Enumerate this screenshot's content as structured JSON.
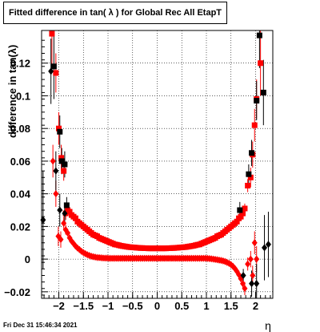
{
  "title": "Fitted difference in tan( λ ) for Global Rec All EtapT",
  "timestamp": "Fri Dec 31 15:46:34 2021",
  "chart_data": {
    "type": "scatter",
    "title": "Fitted difference in tan( λ ) for Global Rec All EtapT",
    "xlabel": "η",
    "ylabel": "difference in tan(λ)",
    "xlim": [
      -2.35,
      2.35
    ],
    "ylim": [
      -0.024,
      0.14
    ],
    "grid": true,
    "x_ticks": [
      -2,
      -1.5,
      -1,
      -0.5,
      0,
      0.5,
      1,
      1.5,
      2
    ],
    "x_tick_labels": [
      "−2",
      "−1.5",
      "−1",
      "−0.5",
      "0",
      "0.5",
      "1",
      "1.5",
      "2"
    ],
    "y_ticks": [
      -0.02,
      0,
      0.02,
      0.04,
      0.06,
      0.08,
      0.1,
      0.12
    ],
    "y_tick_labels": [
      "−0.02",
      "0",
      "0.02",
      "0.04",
      "0.06",
      "0.08",
      "0.1",
      "0.12"
    ],
    "series": [
      {
        "marker": "square",
        "color": "#ff0000",
        "points": [
          [
            -2.14,
            0.138,
            0.02
          ],
          [
            -2.06,
            0.114,
            0.012
          ],
          [
            -2.0,
            0.08,
            0.01
          ],
          [
            -1.95,
            0.062,
            0.008
          ],
          [
            -1.9,
            0.054,
            0.006
          ],
          [
            -1.86,
            0.028,
            0.004
          ],
          [
            -1.82,
            0.03,
            0.003
          ],
          [
            -1.78,
            0.029,
            0.002
          ],
          [
            -1.74,
            0.027,
            0.002
          ],
          [
            -1.7,
            0.026,
            0.001
          ],
          [
            -1.66,
            0.025,
            0.001
          ],
          [
            -1.62,
            0.023,
            0.001
          ],
          [
            -1.58,
            0.022,
            0.001
          ],
          [
            -1.54,
            0.021,
            0.001
          ],
          [
            -1.5,
            0.02,
            0.001
          ],
          [
            -1.46,
            0.019,
            0.001
          ],
          [
            -1.42,
            0.018,
            0.001
          ],
          [
            -1.38,
            0.017,
            0.001
          ],
          [
            -1.34,
            0.016,
            0.001
          ],
          [
            -1.3,
            0.015,
            0.001
          ],
          [
            -1.26,
            0.0145,
            0.001
          ],
          [
            -1.22,
            0.014,
            0.001
          ],
          [
            -1.18,
            0.013,
            0.001
          ],
          [
            -1.14,
            0.0125,
            0.001
          ],
          [
            -1.1,
            0.012,
            0.001
          ],
          [
            -1.06,
            0.0115,
            0.001
          ],
          [
            -1.02,
            0.011,
            0.001
          ],
          [
            -0.98,
            0.0105,
            0.001
          ],
          [
            -0.94,
            0.01,
            0.001
          ],
          [
            -0.9,
            0.0095,
            0.001
          ],
          [
            -0.86,
            0.009,
            0.001
          ],
          [
            -0.82,
            0.0088,
            0.001
          ],
          [
            -0.78,
            0.0085,
            0.001
          ],
          [
            -0.74,
            0.0082,
            0.001
          ],
          [
            -0.7,
            0.008,
            0.001
          ],
          [
            -0.66,
            0.0078,
            0.001
          ],
          [
            -0.62,
            0.0076,
            0.001
          ],
          [
            -0.58,
            0.0074,
            0.001
          ],
          [
            -0.54,
            0.0073,
            0.001
          ],
          [
            -0.5,
            0.0072,
            0.001
          ],
          [
            -0.46,
            0.0071,
            0.001
          ],
          [
            -0.42,
            0.007,
            0.001
          ],
          [
            -0.38,
            0.0069,
            0.001
          ],
          [
            -0.34,
            0.0068,
            0.001
          ],
          [
            -0.3,
            0.0068,
            0.001
          ],
          [
            -0.26,
            0.0067,
            0.001
          ],
          [
            -0.22,
            0.0067,
            0.001
          ],
          [
            -0.18,
            0.0066,
            0.001
          ],
          [
            -0.14,
            0.0066,
            0.001
          ],
          [
            -0.1,
            0.0066,
            0.001
          ],
          [
            -0.06,
            0.0066,
            0.001
          ],
          [
            -0.02,
            0.0066,
            0.001
          ],
          [
            0.02,
            0.0066,
            0.001
          ],
          [
            0.06,
            0.0066,
            0.001
          ],
          [
            0.1,
            0.0066,
            0.001
          ],
          [
            0.14,
            0.0066,
            0.001
          ],
          [
            0.18,
            0.0066,
            0.001
          ],
          [
            0.22,
            0.0067,
            0.001
          ],
          [
            0.26,
            0.0067,
            0.001
          ],
          [
            0.3,
            0.0068,
            0.001
          ],
          [
            0.34,
            0.0068,
            0.001
          ],
          [
            0.38,
            0.0069,
            0.001
          ],
          [
            0.42,
            0.007,
            0.001
          ],
          [
            0.46,
            0.0071,
            0.001
          ],
          [
            0.5,
            0.0072,
            0.001
          ],
          [
            0.54,
            0.0073,
            0.001
          ],
          [
            0.58,
            0.0074,
            0.001
          ],
          [
            0.62,
            0.0076,
            0.001
          ],
          [
            0.66,
            0.0078,
            0.001
          ],
          [
            0.7,
            0.008,
            0.001
          ],
          [
            0.74,
            0.0082,
            0.001
          ],
          [
            0.78,
            0.0085,
            0.001
          ],
          [
            0.82,
            0.0088,
            0.001
          ],
          [
            0.86,
            0.009,
            0.001
          ],
          [
            0.9,
            0.0095,
            0.001
          ],
          [
            0.94,
            0.01,
            0.001
          ],
          [
            0.98,
            0.0105,
            0.001
          ],
          [
            1.02,
            0.011,
            0.001
          ],
          [
            1.06,
            0.0115,
            0.001
          ],
          [
            1.1,
            0.012,
            0.001
          ],
          [
            1.14,
            0.0125,
            0.001
          ],
          [
            1.18,
            0.013,
            0.001
          ],
          [
            1.22,
            0.014,
            0.001
          ],
          [
            1.26,
            0.0145,
            0.001
          ],
          [
            1.3,
            0.015,
            0.001
          ],
          [
            1.34,
            0.016,
            0.001
          ],
          [
            1.38,
            0.017,
            0.001
          ],
          [
            1.42,
            0.018,
            0.001
          ],
          [
            1.46,
            0.019,
            0.001
          ],
          [
            1.5,
            0.02,
            0.001
          ],
          [
            1.54,
            0.021,
            0.001
          ],
          [
            1.58,
            0.022,
            0.001
          ],
          [
            1.62,
            0.023,
            0.001
          ],
          [
            1.66,
            0.025,
            0.001
          ],
          [
            1.7,
            0.026,
            0.001
          ],
          [
            1.74,
            0.028,
            0.002
          ],
          [
            1.78,
            0.031,
            0.003
          ],
          [
            1.84,
            0.045,
            0.004
          ],
          [
            1.9,
            0.05,
            0.006
          ],
          [
            1.94,
            0.064,
            0.008
          ],
          [
            1.98,
            0.082,
            0.01
          ],
          [
            2.02,
            0.098,
            0.012
          ],
          [
            2.1,
            0.12,
            0.02
          ]
        ]
      },
      {
        "marker": "diamond",
        "color": "#ff0000",
        "points": [
          [
            -2.12,
            0.06,
            0.01
          ],
          [
            -2.06,
            0.04,
            0.008
          ],
          [
            -2.01,
            0.014,
            0.006
          ],
          [
            -1.96,
            0.012,
            0.005
          ],
          [
            -1.9,
            0.022,
            0.004
          ],
          [
            -1.86,
            0.018,
            0.003
          ],
          [
            -1.82,
            0.016,
            0.002
          ],
          [
            -1.78,
            0.013,
            0.002
          ],
          [
            -1.74,
            0.011,
            0.001
          ],
          [
            -1.7,
            0.0095,
            0.001
          ],
          [
            -1.66,
            0.008,
            0.001
          ],
          [
            -1.62,
            0.0068,
            0.001
          ],
          [
            -1.58,
            0.0058,
            0.001
          ],
          [
            -1.54,
            0.0048,
            0.001
          ],
          [
            -1.5,
            0.004,
            0.001
          ],
          [
            -1.46,
            0.0033,
            0.001
          ],
          [
            -1.42,
            0.0027,
            0.001
          ],
          [
            -1.38,
            0.0022,
            0.001
          ],
          [
            -1.34,
            0.0018,
            0.001
          ],
          [
            -1.3,
            0.0015,
            0.001
          ],
          [
            -1.26,
            0.0012,
            0.001
          ],
          [
            -1.22,
            0.001,
            0.001
          ],
          [
            -1.18,
            0.0009,
            0.001
          ],
          [
            -1.14,
            0.0008,
            0.001
          ],
          [
            -1.1,
            0.0007,
            0.001
          ],
          [
            -1.06,
            0.0006,
            0.001
          ],
          [
            -1.02,
            0.0006,
            0.001
          ],
          [
            -0.98,
            0.0005,
            0.001
          ],
          [
            -0.94,
            0.0005,
            0.001
          ],
          [
            -0.9,
            0.0005,
            0.001
          ],
          [
            -0.86,
            0.0005,
            0.001
          ],
          [
            -0.82,
            0.0005,
            0.001
          ],
          [
            -0.78,
            0.0005,
            0.001
          ],
          [
            -0.74,
            0.0005,
            0.001
          ],
          [
            -0.7,
            0.0005,
            0.001
          ],
          [
            -0.66,
            0.0005,
            0.001
          ],
          [
            -0.62,
            0.0005,
            0.001
          ],
          [
            -0.58,
            0.0005,
            0.001
          ],
          [
            -0.54,
            0.0005,
            0.001
          ],
          [
            -0.5,
            0.0005,
            0.001
          ],
          [
            -0.46,
            0.0005,
            0.001
          ],
          [
            -0.42,
            0.0005,
            0.001
          ],
          [
            -0.38,
            0.0005,
            0.001
          ],
          [
            -0.34,
            0.0005,
            0.001
          ],
          [
            -0.3,
            0.0005,
            0.001
          ],
          [
            -0.26,
            0.0005,
            0.001
          ],
          [
            -0.22,
            0.0005,
            0.001
          ],
          [
            -0.18,
            0.0005,
            0.001
          ],
          [
            -0.14,
            0.0005,
            0.001
          ],
          [
            -0.1,
            0.0005,
            0.001
          ],
          [
            -0.06,
            0.0005,
            0.001
          ],
          [
            -0.02,
            0.0005,
            0.001
          ],
          [
            0.02,
            0.0005,
            0.001
          ],
          [
            0.06,
            0.0005,
            0.001
          ],
          [
            0.1,
            0.0005,
            0.001
          ],
          [
            0.14,
            0.0005,
            0.001
          ],
          [
            0.18,
            0.0005,
            0.001
          ],
          [
            0.22,
            0.0005,
            0.001
          ],
          [
            0.26,
            0.0005,
            0.001
          ],
          [
            0.3,
            0.0005,
            0.001
          ],
          [
            0.34,
            0.0005,
            0.001
          ],
          [
            0.38,
            0.0005,
            0.001
          ],
          [
            0.42,
            0.0005,
            0.001
          ],
          [
            0.46,
            0.0005,
            0.001
          ],
          [
            0.5,
            0.0005,
            0.001
          ],
          [
            0.54,
            0.0005,
            0.001
          ],
          [
            0.58,
            0.0005,
            0.001
          ],
          [
            0.62,
            0.0005,
            0.001
          ],
          [
            0.66,
            0.0005,
            0.001
          ],
          [
            0.7,
            0.0005,
            0.001
          ],
          [
            0.74,
            0.0005,
            0.001
          ],
          [
            0.78,
            0.0005,
            0.001
          ],
          [
            0.82,
            0.0005,
            0.001
          ],
          [
            0.86,
            0.0005,
            0.001
          ],
          [
            0.9,
            0.0005,
            0.001
          ],
          [
            0.94,
            0.0005,
            0.001
          ],
          [
            0.98,
            0.0005,
            0.001
          ],
          [
            1.02,
            0.0004,
            0.001
          ],
          [
            1.06,
            0.0003,
            0.001
          ],
          [
            1.1,
            0.0002,
            0.001
          ],
          [
            1.14,
            0.0,
            0.001
          ],
          [
            1.18,
            -0.0002,
            0.001
          ],
          [
            1.22,
            -0.0004,
            0.001
          ],
          [
            1.26,
            -0.0006,
            0.001
          ],
          [
            1.3,
            -0.0008,
            0.001
          ],
          [
            1.34,
            -0.0011,
            0.001
          ],
          [
            1.38,
            -0.0015,
            0.001
          ],
          [
            1.42,
            -0.002,
            0.001
          ],
          [
            1.46,
            -0.0026,
            0.001
          ],
          [
            1.5,
            -0.0034,
            0.001
          ],
          [
            1.54,
            -0.0044,
            0.001
          ],
          [
            1.58,
            -0.0058,
            0.001
          ],
          [
            1.62,
            -0.0075,
            0.001
          ],
          [
            1.66,
            -0.0095,
            0.002
          ],
          [
            1.7,
            -0.012,
            0.002
          ],
          [
            1.74,
            -0.015,
            0.003
          ],
          [
            1.78,
            -0.018,
            0.004
          ],
          [
            1.84,
            -0.003,
            0.004
          ],
          [
            1.9,
            0.0,
            0.005
          ],
          [
            1.94,
            -0.01,
            0.006
          ],
          [
            1.98,
            0.01,
            0.007
          ],
          [
            2.02,
            0.0,
            0.008
          ]
        ]
      },
      {
        "marker": "square",
        "color": "#000000",
        "points": [
          [
            -2.1,
            0.118,
            0.02
          ],
          [
            -1.98,
            0.078,
            0.01
          ],
          [
            -1.94,
            0.06,
            0.008
          ],
          [
            -1.88,
            0.058,
            0.008
          ],
          [
            -1.84,
            0.033,
            0.005
          ],
          [
            1.68,
            0.03,
            0.005
          ],
          [
            1.86,
            0.052,
            0.006
          ],
          [
            1.92,
            0.065,
            0.008
          ],
          [
            2.02,
            0.097,
            0.012
          ],
          [
            2.08,
            0.137,
            0.02
          ],
          [
            2.16,
            0.102,
            0.02
          ]
        ]
      },
      {
        "marker": "diamond",
        "color": "#000000",
        "points": [
          [
            -2.32,
            0.024,
            0.03
          ],
          [
            -2.16,
            0.115,
            0.02
          ],
          [
            -2.06,
            0.054,
            0.012
          ],
          [
            -1.98,
            0.03,
            0.01
          ],
          [
            -1.88,
            0.028,
            0.006
          ],
          [
            1.75,
            -0.01,
            0.004
          ],
          [
            1.92,
            -0.015,
            0.008
          ],
          [
            2.02,
            -0.015,
            0.012
          ],
          [
            2.18,
            0.007,
            0.02
          ],
          [
            2.26,
            0.009,
            0.02
          ]
        ]
      }
    ]
  }
}
